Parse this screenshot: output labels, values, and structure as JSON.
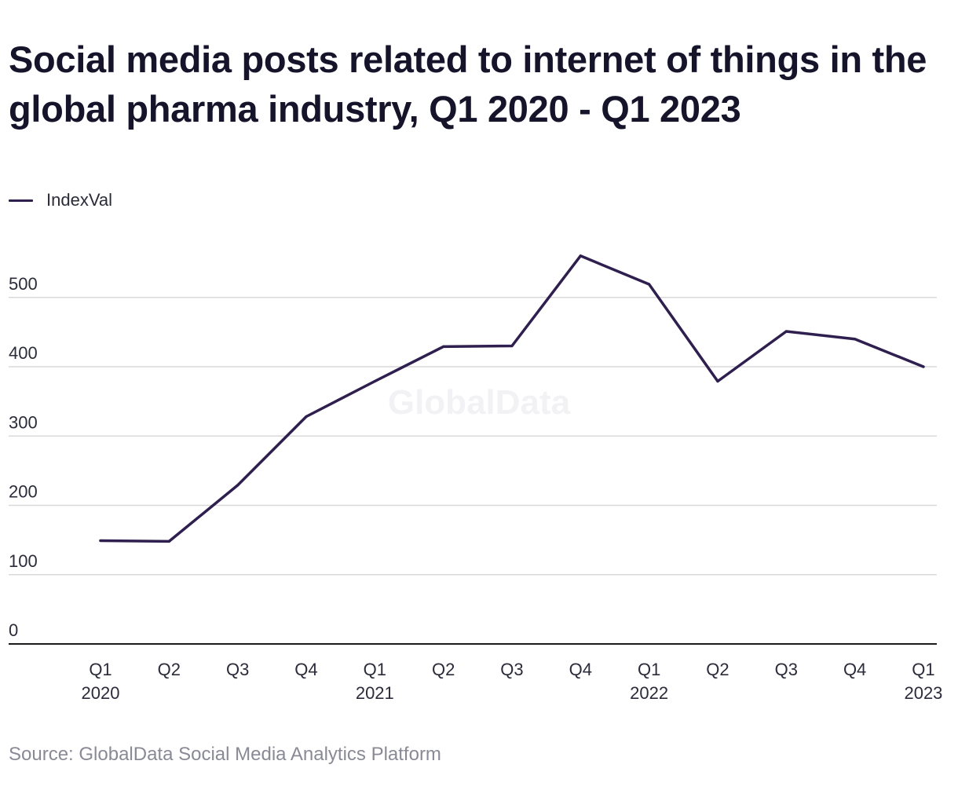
{
  "title": "Social media posts related to internet of things in the global pharma industry, Q1 2020 - Q1 2023",
  "source": "Source: GlobalData Social Media Analytics Platform",
  "watermark": "GlobalData",
  "colors": {
    "line": "#2e1f4f",
    "grid": "#d9d9d9",
    "axis": "#1a1a1a",
    "tick_text": "#2b2b3a"
  },
  "chart_data": {
    "type": "line",
    "title": "Social media posts related to internet of things in the global pharma industry, Q1 2020 - Q1 2023",
    "xlabel": "",
    "ylabel": "",
    "categories": [
      [
        "Q1",
        "2020"
      ],
      [
        "Q2",
        ""
      ],
      [
        "Q3",
        ""
      ],
      [
        "Q4",
        ""
      ],
      [
        "Q1",
        "2021"
      ],
      [
        "Q2",
        ""
      ],
      [
        "Q3",
        ""
      ],
      [
        "Q4",
        ""
      ],
      [
        "Q1",
        "2022"
      ],
      [
        "Q2",
        ""
      ],
      [
        "Q3",
        ""
      ],
      [
        "Q4",
        ""
      ],
      [
        "Q1",
        "2023"
      ]
    ],
    "series": [
      {
        "name": "IndexVal",
        "values": [
          149,
          148,
          229,
          328,
          379,
          429,
          430,
          560,
          519,
          379,
          451,
          440,
          400
        ]
      }
    ],
    "yticks": [
      0,
      100,
      200,
      300,
      400,
      500
    ],
    "ylim": [
      0,
      570
    ],
    "grid": true,
    "legend_position": "top-left"
  }
}
